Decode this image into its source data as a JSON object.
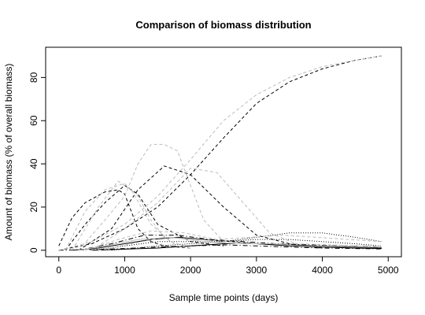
{
  "chart_data": {
    "type": "line",
    "title": "Comparison of biomass distribution",
    "xlabel": "Sample time points (days)",
    "ylabel": "Amount of biomass (% of overall biomass)",
    "xlim": [
      -200,
      5200
    ],
    "ylim": [
      -3,
      94
    ],
    "xticks": [
      0,
      1000,
      2000,
      3000,
      4000,
      5000
    ],
    "yticks": [
      0,
      20,
      40,
      60,
      80
    ],
    "grid": false,
    "legend": "none",
    "series": [
      {
        "style": "dashed",
        "color": "#000000",
        "x": [
          0,
          500,
          1000,
          1500,
          2000,
          2500,
          3000,
          3500,
          4000,
          4500,
          4900
        ],
        "values": [
          0,
          3,
          10,
          20,
          35,
          52,
          68,
          78,
          84,
          88,
          90
        ]
      },
      {
        "style": "dashed",
        "color": "#000000",
        "x": [
          0,
          200,
          400,
          700,
          900,
          1000,
          1100,
          1200,
          1400,
          1600,
          2000
        ],
        "values": [
          2,
          15,
          22,
          27,
          28,
          26,
          18,
          10,
          4,
          2,
          1
        ]
      },
      {
        "style": "dashed",
        "color": "#000000",
        "x": [
          100,
          400,
          700,
          1000,
          1200,
          1500,
          2000,
          2500
        ],
        "values": [
          0,
          12,
          22,
          30,
          26,
          12,
          4,
          2
        ]
      },
      {
        "style": "dashed",
        "color": "#000000",
        "x": [
          300,
          800,
          1200,
          1600,
          2000,
          2500,
          3000,
          3500,
          4000
        ],
        "values": [
          0,
          10,
          28,
          39,
          35,
          20,
          7,
          3,
          1
        ]
      },
      {
        "style": "dotted",
        "color": "#000000",
        "x": [
          500,
          1000,
          1500,
          2000,
          2500,
          3000,
          3500,
          4000,
          4500,
          4900
        ],
        "values": [
          0,
          2,
          4,
          4,
          4,
          6,
          8,
          8,
          6,
          4
        ]
      },
      {
        "style": "dotted",
        "color": "#000000",
        "x": [
          800,
          1500,
          2000,
          2500,
          3000,
          3500,
          4000,
          4500,
          4900
        ],
        "values": [
          0,
          2,
          3,
          4,
          5,
          5,
          4,
          3,
          2
        ]
      },
      {
        "style": "solid",
        "color": "#000000",
        "x": [
          200,
          600,
          1000,
          1400,
          1800,
          2200,
          2600,
          3000,
          3500,
          4000,
          4500,
          4900
        ],
        "values": [
          0,
          1,
          3,
          5,
          6,
          5,
          4,
          3,
          2,
          1.5,
          1,
          0.8
        ]
      },
      {
        "style": "solid",
        "color": "#000000",
        "x": [
          500,
          1000,
          1500,
          2000,
          2500,
          3000,
          3500,
          4000,
          4500,
          4900
        ],
        "values": [
          0,
          0.5,
          1,
          2,
          3,
          3,
          2.5,
          2,
          1.5,
          1
        ]
      },
      {
        "style": "dashdot",
        "color": "#000000",
        "x": [
          300,
          800,
          1300,
          1800,
          2300,
          2800,
          3300,
          3800,
          4300,
          4900
        ],
        "values": [
          0,
          3,
          7,
          7,
          5,
          4,
          3,
          2.5,
          2,
          1.5
        ]
      },
      {
        "style": "dashdot",
        "color": "#000000",
        "x": [
          0,
          500,
          1000,
          1500,
          2000,
          2500,
          3000,
          3500,
          4000,
          4500,
          4900
        ],
        "values": [
          0,
          0.3,
          0.8,
          1.5,
          2,
          2.5,
          2,
          1.5,
          1,
          0.8,
          0.6
        ]
      },
      {
        "style": "dashed",
        "color": "#bbbbbb",
        "x": [
          0,
          500,
          1000,
          1500,
          2000,
          2500,
          3000,
          3500,
          4000,
          4500,
          4900
        ],
        "values": [
          0,
          4,
          12,
          25,
          42,
          60,
          72,
          80,
          85,
          88,
          90
        ]
      },
      {
        "style": "dashed",
        "color": "#bbbbbb",
        "x": [
          100,
          400,
          700,
          1000,
          1200,
          1400,
          1600,
          1800,
          2000
        ],
        "values": [
          0,
          18,
          28,
          31,
          25,
          14,
          6,
          2,
          1
        ]
      },
      {
        "style": "dashed",
        "color": "#bbbbbb",
        "x": [
          300,
          700,
          1000,
          1200,
          1400,
          1600,
          1800,
          2000,
          2200,
          2500
        ],
        "values": [
          0,
          14,
          25,
          40,
          49,
          49,
          46,
          30,
          14,
          4
        ]
      },
      {
        "style": "dashed",
        "color": "#bbbbbb",
        "x": [
          200,
          600,
          900,
          1100,
          1400,
          1700,
          2000
        ],
        "values": [
          0,
          20,
          32,
          28,
          12,
          4,
          1
        ]
      },
      {
        "style": "dashed",
        "color": "#bbbbbb",
        "x": [
          500,
          1000,
          1500,
          2000,
          2400,
          2800,
          3200,
          3600
        ],
        "values": [
          0,
          10,
          22,
          38,
          36,
          22,
          8,
          3
        ]
      },
      {
        "style": "dashed",
        "color": "#bbbbbb",
        "x": [
          400,
          900,
          1400,
          1900,
          2400,
          2900,
          3400,
          3900,
          4400,
          4900
        ],
        "values": [
          0,
          5,
          9,
          8,
          5,
          6,
          7,
          6,
          5,
          4
        ]
      },
      {
        "style": "dashed",
        "color": "#bbbbbb",
        "x": [
          600,
          1100,
          1600,
          2100,
          2600,
          3100,
          3600,
          4100,
          4600,
          4900
        ],
        "values": [
          0,
          3,
          6,
          5,
          4,
          3,
          3,
          2.5,
          2,
          2
        ]
      },
      {
        "style": "solid",
        "color": "#bbbbbb",
        "x": [
          300,
          700,
          1200,
          1700,
          2200,
          2700,
          3200,
          3700,
          4200,
          4700,
          4900
        ],
        "values": [
          0,
          2,
          5,
          6,
          4,
          3,
          3,
          2,
          2,
          1.5,
          1.5
        ]
      }
    ]
  }
}
